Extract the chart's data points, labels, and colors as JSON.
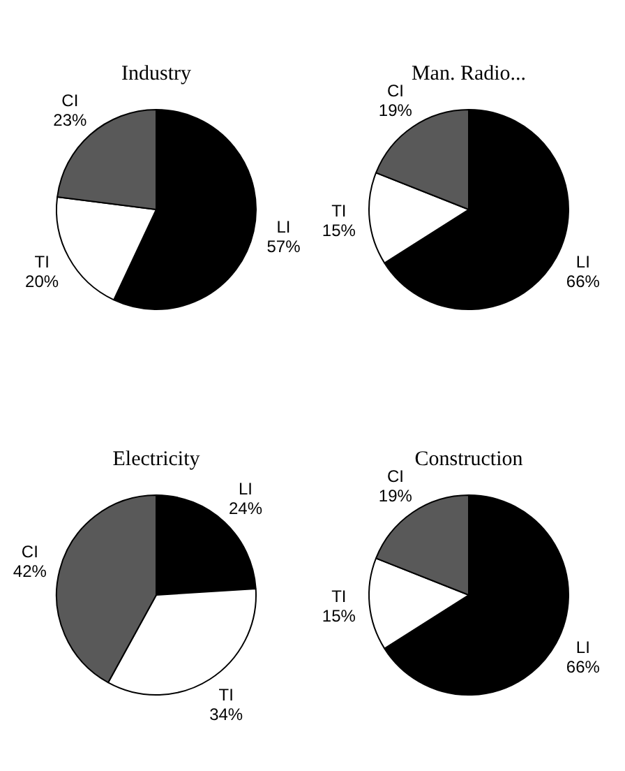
{
  "chart_data": [
    {
      "type": "pie",
      "title": "Industry",
      "categories": [
        "LI",
        "TI",
        "CI"
      ],
      "values": [
        57,
        20,
        23
      ],
      "colors": [
        "#000000",
        "#ffffff",
        "#595959"
      ],
      "value_labels": [
        "57%",
        "20%",
        "23%"
      ]
    },
    {
      "type": "pie",
      "title": "Man. Radio...",
      "categories": [
        "LI",
        "TI",
        "CI"
      ],
      "values": [
        66,
        15,
        19
      ],
      "colors": [
        "#000000",
        "#ffffff",
        "#595959"
      ],
      "value_labels": [
        "66%",
        "15%",
        "19%"
      ]
    },
    {
      "type": "pie",
      "title": "Electricity",
      "categories": [
        "LI",
        "TI",
        "CI"
      ],
      "values": [
        24,
        34,
        42
      ],
      "colors": [
        "#000000",
        "#ffffff",
        "#595959"
      ],
      "value_labels": [
        "24%",
        "34%",
        "42%"
      ]
    },
    {
      "type": "pie",
      "title": "Construction",
      "categories": [
        "LI",
        "TI",
        "CI"
      ],
      "values": [
        66,
        15,
        19
      ],
      "colors": [
        "#000000",
        "#ffffff",
        "#595959"
      ],
      "value_labels": [
        "66%",
        "15%",
        "19%"
      ]
    }
  ]
}
